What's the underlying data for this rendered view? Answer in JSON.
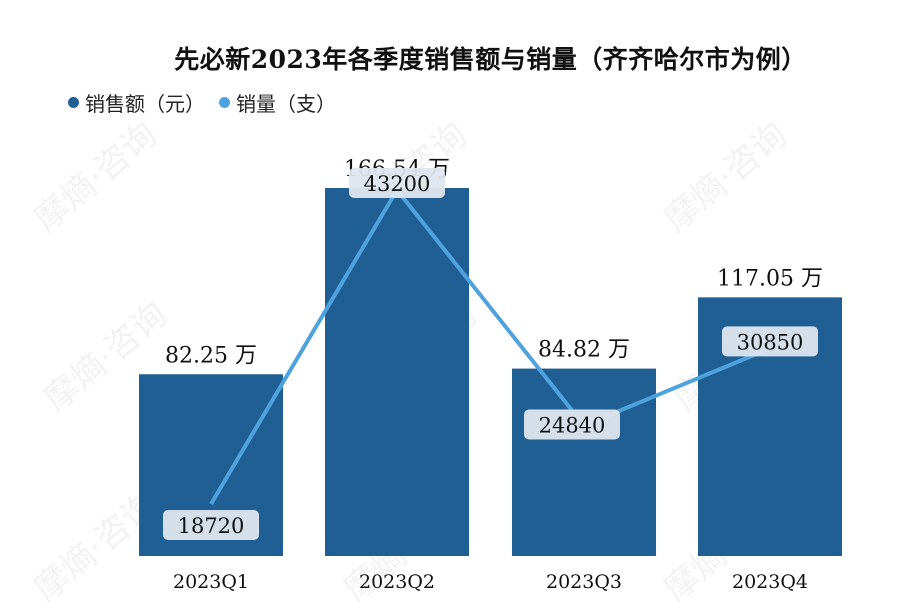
{
  "chart_data": {
    "type": "bar",
    "title": "先必新2023年各季度销售额与销量（齐齐哈尔市为例）",
    "categories": [
      "2023Q1",
      "2023Q2",
      "2023Q3",
      "2023Q4"
    ],
    "series": [
      {
        "name": "销售额（元）",
        "type": "bar",
        "color": "#1f5f94",
        "values": [
          822500,
          1665400,
          848200,
          1170500
        ],
        "labels": [
          "82.25 万",
          "166.54 万",
          "84.82 万",
          "117.05 万"
        ]
      },
      {
        "name": "销量（支）",
        "type": "line",
        "color": "#4ea3de",
        "values": [
          18720,
          43200,
          24840,
          30850
        ],
        "labels": [
          "18720",
          "43200",
          "24840",
          "30850"
        ]
      }
    ],
    "legend_position": "top-left",
    "grid": false
  },
  "watermark": "摩熵·咨询"
}
